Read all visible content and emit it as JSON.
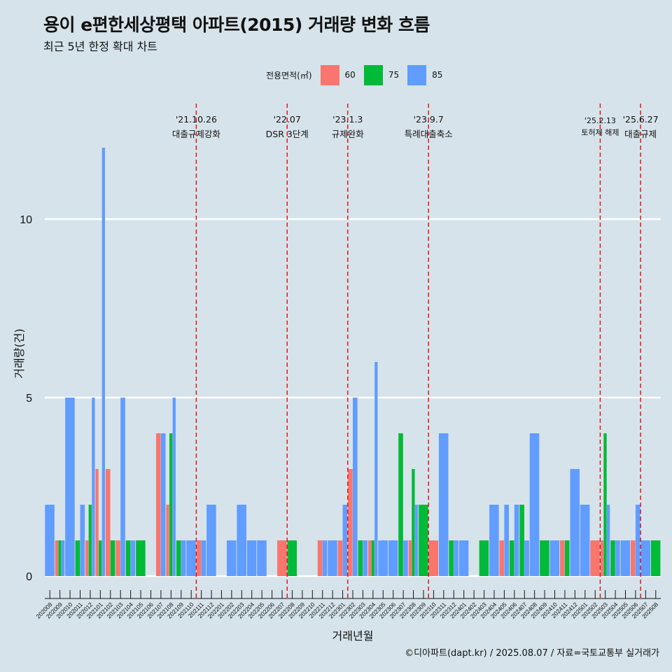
{
  "title": "용이 e편한세상평택 아파트(2015) 거래량 변화 흐름",
  "subtitle": "최근 5년 한정 확대 차트",
  "legend": {
    "title": "전용면적(㎡)",
    "items": [
      {
        "label": "60",
        "color": "#f8766d"
      },
      {
        "label": "75",
        "color": "#00ba38"
      },
      {
        "label": "85",
        "color": "#619cff"
      }
    ]
  },
  "caption": "©디아파트(dapt.kr) / 2025.08.07 / 자료=국토교통부 실거래가",
  "chart_data": {
    "type": "bar",
    "stacking": "dodge",
    "title": "용이 e편한세상평택 아파트(2015) 거래량 변화 흐름",
    "xlabel": "거래년월",
    "ylabel": "거래량(건)",
    "ylim": [
      0,
      12
    ],
    "yticks": [
      0,
      5,
      10
    ],
    "grid": "horizontal",
    "legend_position": "top",
    "categories": [
      "202008",
      "202009",
      "202010",
      "202011",
      "202012",
      "202101",
      "202102",
      "202103",
      "202104",
      "202105",
      "202106",
      "202107",
      "202108",
      "202109",
      "202110",
      "202111",
      "202112",
      "202201",
      "202202",
      "202203",
      "202204",
      "202205",
      "202206",
      "202207",
      "202208",
      "202209",
      "202210",
      "202211",
      "202212",
      "202301",
      "202302",
      "202303",
      "202304",
      "202305",
      "202306",
      "202307",
      "202308",
      "202309",
      "202310",
      "202311",
      "202312",
      "202401",
      "202402",
      "202403",
      "202404",
      "202405",
      "202406",
      "202407",
      "202408",
      "202409",
      "202410",
      "202411",
      "202412",
      "202501",
      "202502",
      "202503",
      "202504",
      "202505",
      "202506",
      "202507",
      "202508"
    ],
    "series": [
      {
        "name": "60",
        "color": "#f8766d",
        "values": [
          0,
          1,
          0,
          0,
          1,
          3,
          3,
          1,
          0,
          0,
          0,
          4,
          2,
          0,
          0,
          1,
          0,
          0,
          0,
          0,
          0,
          0,
          0,
          1,
          0,
          0,
          0,
          1,
          0,
          1,
          3,
          0,
          1,
          0,
          0,
          0,
          1,
          0,
          1,
          0,
          0,
          0,
          0,
          0,
          0,
          1,
          0,
          0,
          0,
          0,
          0,
          1,
          0,
          0,
          1,
          1,
          0,
          0,
          1,
          0,
          0
        ]
      },
      {
        "name": "75",
        "color": "#00ba38",
        "values": [
          0,
          1,
          0,
          1,
          2,
          1,
          1,
          0,
          1,
          1,
          0,
          0,
          4,
          1,
          0,
          0,
          0,
          0,
          0,
          0,
          0,
          0,
          0,
          0,
          1,
          0,
          0,
          0,
          0,
          0,
          0,
          1,
          1,
          0,
          0,
          4,
          3,
          2,
          0,
          0,
          1,
          0,
          0,
          1,
          0,
          0,
          1,
          2,
          0,
          1,
          0,
          1,
          0,
          0,
          0,
          4,
          1,
          0,
          0,
          0,
          1
        ]
      },
      {
        "name": "85",
        "color": "#619cff",
        "values": [
          2,
          1,
          5,
          2,
          5,
          12,
          0,
          5,
          1,
          0,
          0,
          4,
          5,
          1,
          1,
          1,
          2,
          0,
          1,
          2,
          1,
          1,
          0,
          0,
          0,
          0,
          0,
          1,
          1,
          2,
          5,
          1,
          6,
          1,
          1,
          1,
          2,
          0,
          0,
          4,
          1,
          1,
          0,
          0,
          2,
          2,
          2,
          1,
          4,
          0,
          1,
          0,
          3,
          2,
          0,
          2,
          1,
          1,
          2,
          1,
          0
        ]
      }
    ],
    "events": [
      {
        "label_date": "'21.10.26",
        "label_text": "대출규제강화",
        "after_category": "202110"
      },
      {
        "label_date": "'22.07",
        "label_text": "DSR 3단계",
        "after_category": "202207"
      },
      {
        "label_date": "'23.1.3",
        "label_text": "규제완화",
        "after_category": "202301"
      },
      {
        "label_date": "'23.9.7",
        "label_text": "특례대출축소",
        "after_category": "202309"
      },
      {
        "label_date": "'25.2.13",
        "label_text": "토허제 해제",
        "after_category": "202502"
      },
      {
        "label_date": "'25.6.27",
        "label_text": "대출규제",
        "after_category": "202506"
      }
    ]
  }
}
